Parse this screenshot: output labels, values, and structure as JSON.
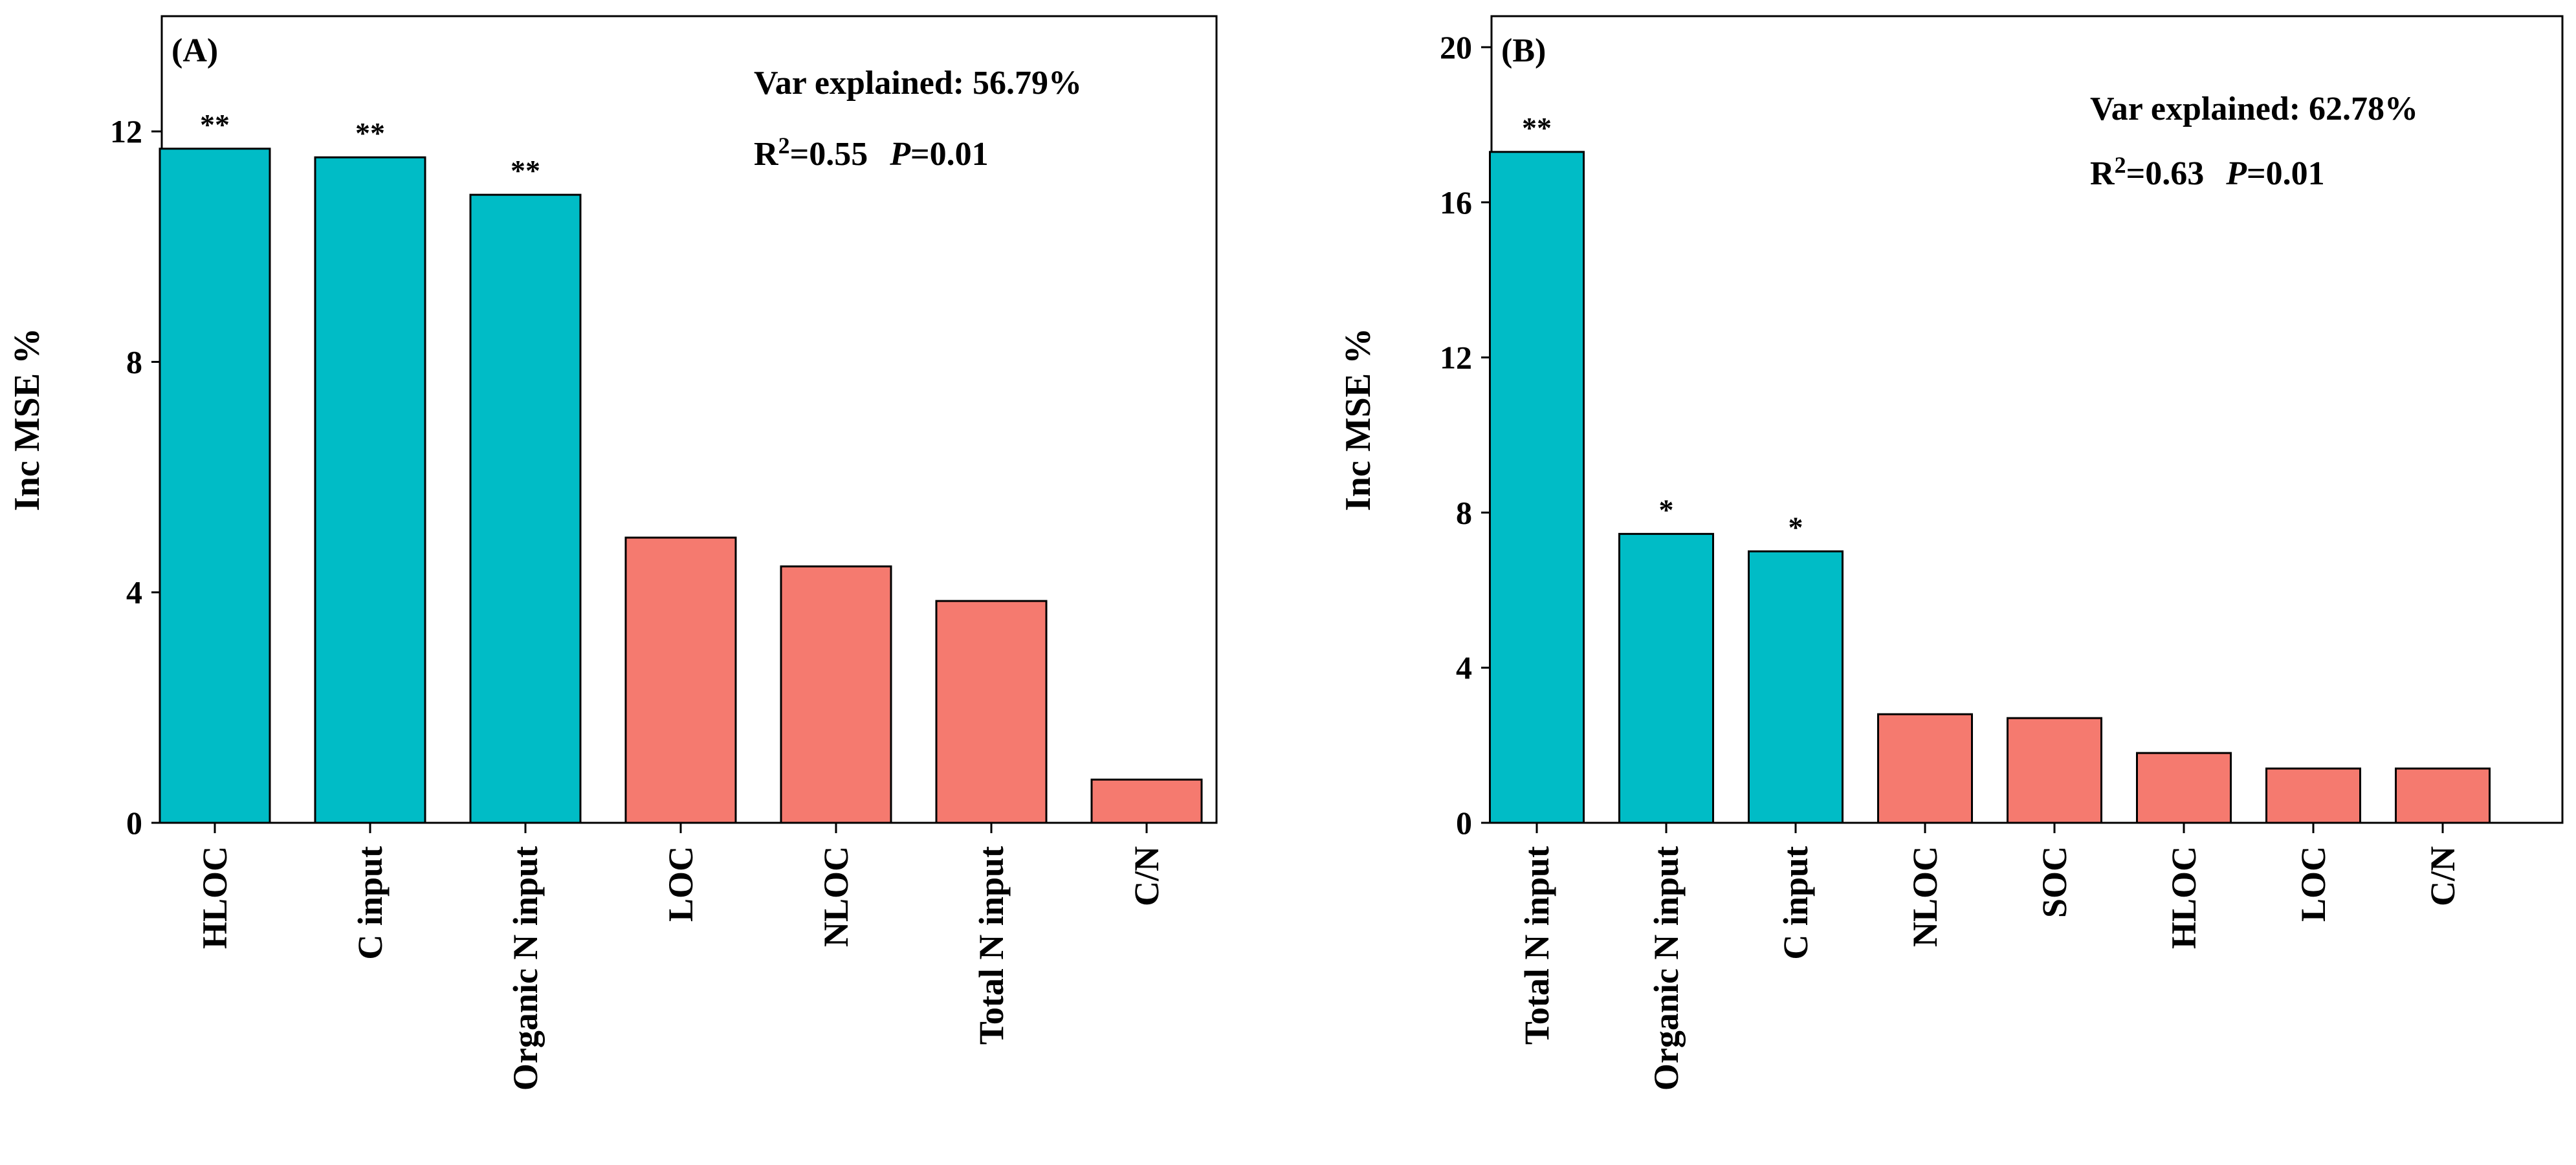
{
  "colors": {
    "significant": "#00BCC6",
    "non_significant": "#F57A6F",
    "axis": "#000000"
  },
  "chart_data": [
    {
      "type": "bar",
      "panel_label": "(A)",
      "title": "",
      "xlabel": "",
      "ylabel": "Inc MSE %",
      "ylim": [
        0,
        14
      ],
      "yticks": [
        0,
        4,
        8,
        12
      ],
      "categories": [
        "HLOC",
        "C input",
        "Organic N input",
        "LOC",
        "NLOC",
        "Total N input",
        "C/N"
      ],
      "values": [
        11.7,
        11.55,
        10.9,
        4.95,
        4.45,
        3.85,
        0.75
      ],
      "significance": [
        "**",
        "**",
        "**",
        "",
        "",
        "",
        ""
      ],
      "significant": [
        true,
        true,
        true,
        false,
        false,
        false,
        false
      ],
      "annotation": {
        "var_label": "Var explained: 56.79%",
        "r_label": "R",
        "r_sup": "2",
        "r_value": "=0.55",
        "p_label": "P",
        "p_value": "=0.01"
      }
    },
    {
      "type": "bar",
      "panel_label": "(B)",
      "title": "",
      "xlabel": "",
      "ylabel": "Inc MSE %",
      "ylim": [
        0,
        20.8
      ],
      "yticks": [
        0,
        4,
        8,
        12,
        16,
        20
      ],
      "categories": [
        "Total N input",
        "Organic N input",
        "C input",
        "NLOC",
        "SOC",
        "HLOC",
        "LOC",
        "C/N"
      ],
      "values": [
        17.3,
        7.45,
        7.0,
        2.8,
        2.7,
        1.8,
        1.4,
        1.4
      ],
      "significance": [
        "**",
        "*",
        "*",
        "",
        "",
        "",
        "",
        ""
      ],
      "significant": [
        true,
        true,
        true,
        false,
        false,
        false,
        false,
        false
      ],
      "annotation": {
        "var_label": "Var explained: 62.78%",
        "r_label": "R",
        "r_sup": "2",
        "r_value": "=0.63",
        "p_label": "P",
        "p_value": "=0.01"
      }
    }
  ]
}
